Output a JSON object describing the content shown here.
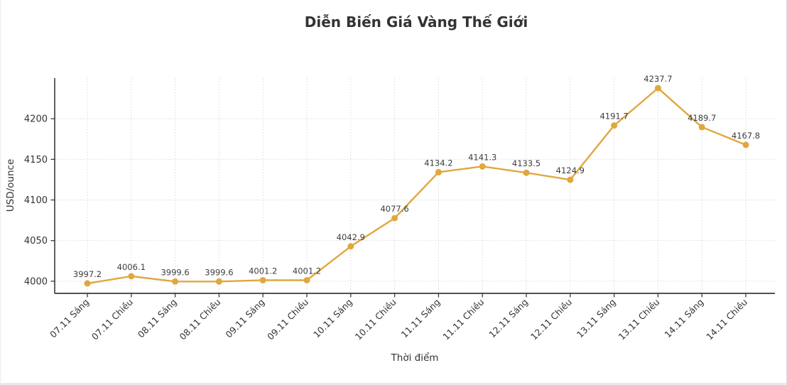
{
  "chart_data": {
    "type": "line",
    "title": "Diễn Biến Giá Vàng Thế Giới",
    "xlabel": "Thời điểm",
    "ylabel": "USD/ounce",
    "categories": [
      "07.11 Sáng",
      "07.11 Chiều",
      "08.11 Sáng",
      "08.11 Chiều",
      "09.11 Sáng",
      "09.11 Chiều",
      "10.11 Sáng",
      "10.11 Chiều",
      "11.11 Sáng",
      "11.11 Chiều",
      "12.11 Sáng",
      "12.11 Chiều",
      "13.11 Sáng",
      "13.11 Chiều",
      "14.11 Sáng",
      "14.11 Chiều"
    ],
    "values": [
      3997.2,
      4006.1,
      3999.6,
      3999.6,
      4001.2,
      4001.2,
      4042.9,
      4077.6,
      4134.2,
      4141.3,
      4133.5,
      4124.9,
      4191.7,
      4237.7,
      4189.7,
      4167.8
    ],
    "point_labels": [
      "3997.2",
      "4006.1",
      "3999.6",
      "3999.6",
      "4001.2",
      "4001.2",
      "4042.9",
      "4077.6",
      "4134.2",
      "4141.3",
      "4133.5",
      "4124.9",
      "4191.7",
      "4237.7",
      "4189.7",
      "4167.8"
    ],
    "yticks": [
      4000,
      4050,
      4100,
      4150,
      4200
    ],
    "ylim": [
      3985,
      4250
    ],
    "grid": true,
    "legend": "none",
    "colors": {
      "line": "#E0A73E",
      "marker": "#E0A73E",
      "point_label_text": "#3d3d3d",
      "tick_text": "#333333",
      "axis": "#3a3a3a",
      "grid": "#d9d9d9",
      "title": "#333333"
    }
  }
}
